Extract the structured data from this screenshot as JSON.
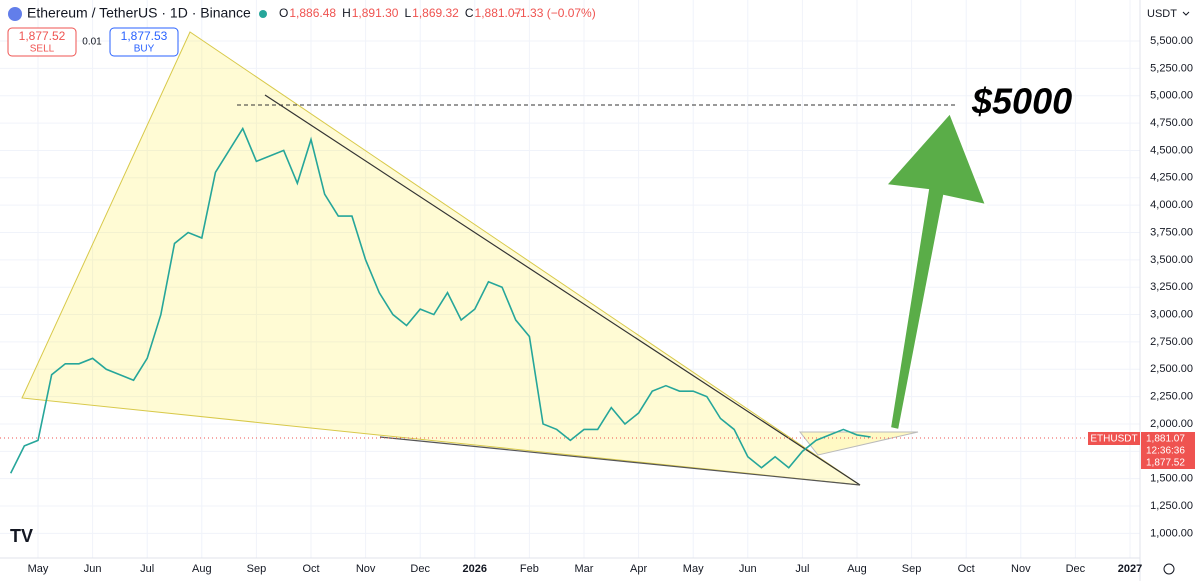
{
  "header": {
    "symbol": "Ethereum / TetherUS · 1D · Binance",
    "ohlc": [
      {
        "key": "O",
        "value": "1,886.48"
      },
      {
        "key": "H",
        "value": "1,891.30"
      },
      {
        "key": "L",
        "value": "1,869.32"
      },
      {
        "key": "C",
        "value": "1,881.07"
      }
    ],
    "change": "−1.33 (−0.07%)",
    "sell": {
      "price": "1,877.52",
      "label": "SELL"
    },
    "spread": "0.01",
    "buy": {
      "price": "1,877.53",
      "label": "BUY"
    },
    "currency": "USDT"
  },
  "price_tag": {
    "price": "1,881.07",
    "countdown": "12:36:36",
    "bid": "1,877.52"
  },
  "chart_data": {
    "type": "line",
    "categories": [
      null,
      null,
      "May",
      null,
      null,
      null,
      "Jun",
      null,
      null,
      null,
      "Jul",
      null,
      null,
      null,
      "Aug",
      null,
      null,
      null,
      "Sep",
      null,
      null,
      null,
      "Oct",
      null,
      null,
      null,
      "Nov",
      null,
      null,
      null,
      "Dec",
      null,
      null,
      null,
      "2026",
      null,
      null,
      null,
      "Feb",
      null,
      null,
      null,
      "Mar",
      null,
      null,
      null,
      "Apr",
      null,
      null,
      null,
      "May",
      null,
      null,
      null,
      "Jun",
      null,
      null,
      null,
      "Jul",
      null,
      null,
      null,
      "Aug",
      null,
      null,
      null,
      "Sep",
      null,
      null,
      null,
      "Oct",
      null,
      null,
      null,
      "Nov",
      null,
      null,
      null,
      "Dec",
      null,
      null,
      null,
      "2027"
    ],
    "series": [
      {
        "name": "ETHUSDT",
        "color": "#26a69a",
        "values": [
          1550,
          1800,
          1850,
          2450,
          2550,
          2550,
          2600,
          2500,
          2450,
          2400,
          2600,
          3000,
          3650,
          3750,
          3700,
          4300,
          4500,
          4700,
          4400,
          4450,
          4500,
          4200,
          4600,
          4100,
          3900,
          3900,
          3500,
          3200,
          3000,
          2900,
          3050,
          3000,
          3200,
          2950,
          3050,
          3300,
          3250,
          2950,
          2800,
          2000,
          1950,
          1850,
          1950,
          1950,
          2150,
          2000,
          2100,
          2300,
          2350,
          2300,
          2300,
          2250,
          2050,
          1950,
          1700,
          1600,
          1700,
          1600,
          1750,
          1850,
          1900,
          1950,
          1900,
          1881.07,
          null,
          null,
          null,
          null,
          null,
          null,
          null,
          null,
          null,
          null,
          null,
          null,
          null,
          null,
          null,
          null,
          null,
          null,
          null
        ]
      }
    ],
    "ylim": [
      775,
      5875
    ],
    "yticks": [
      {
        "value": 1000,
        "label": "1,000.00"
      },
      {
        "value": 1250,
        "label": "1,250.00"
      },
      {
        "value": 1500,
        "label": "1,500.00"
      },
      {
        "value": 1750,
        "label": "1,750.00"
      },
      {
        "value": 2000,
        "label": "2,000.00"
      },
      {
        "value": 2250,
        "label": "2,250.00"
      },
      {
        "value": 2500,
        "label": "2,500.00"
      },
      {
        "value": 2750,
        "label": "2,750.00"
      },
      {
        "value": 3000,
        "label": "3,000.00"
      },
      {
        "value": 3250,
        "label": "3,250.00"
      },
      {
        "value": 3500,
        "label": "3,500.00"
      },
      {
        "value": 3750,
        "label": "3,750.00"
      },
      {
        "value": 4000,
        "label": "4,000.00"
      },
      {
        "value": 4250,
        "label": "4,250.00"
      },
      {
        "value": 4500,
        "label": "4,500.00"
      },
      {
        "value": 4750,
        "label": "4,750.00"
      },
      {
        "value": 5000,
        "label": "5,000.00"
      },
      {
        "value": 5250,
        "label": "5,250.00"
      },
      {
        "value": 5500,
        "label": "5,500.00"
      }
    ],
    "grid": true,
    "annotation": "$5000"
  }
}
